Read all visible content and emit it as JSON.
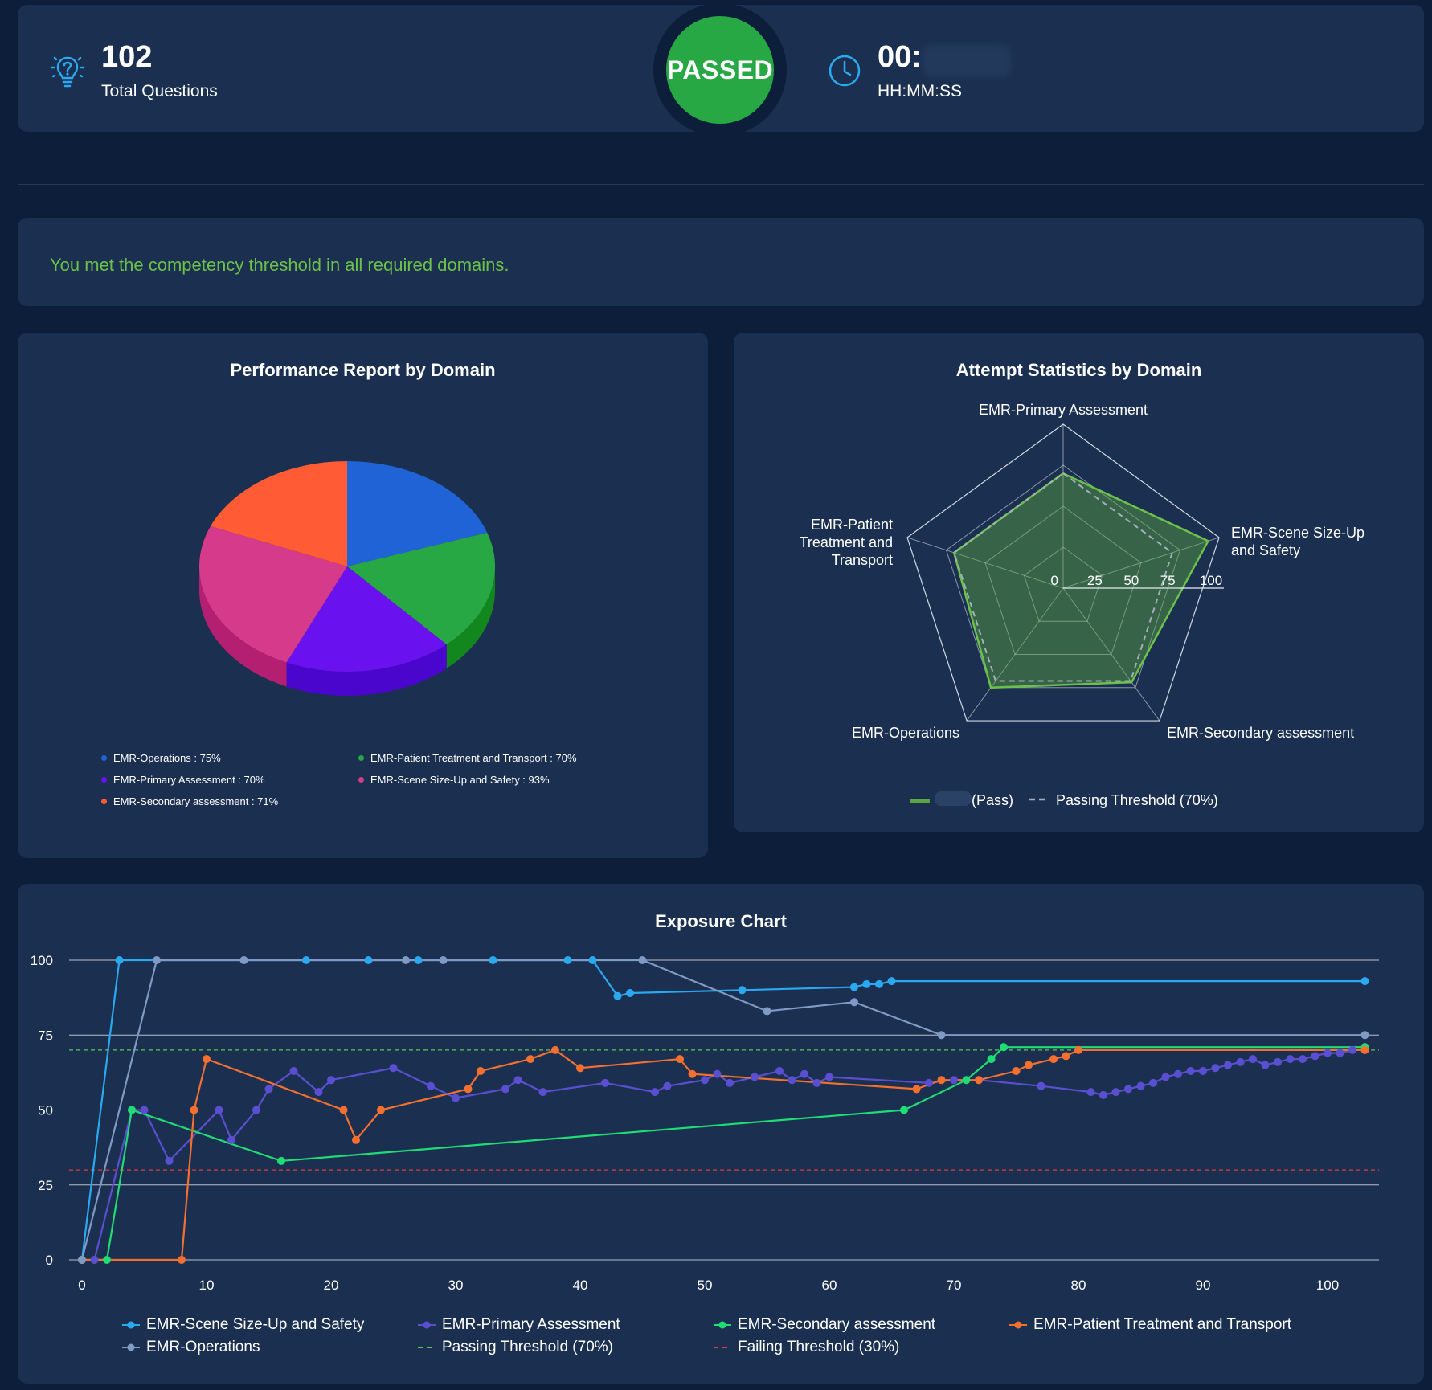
{
  "header": {
    "total_questions_value": "102",
    "total_questions_label": "Total Questions",
    "status": "PASSED",
    "time_value": "00:",
    "time_label": "HH:MM:SS",
    "icons": {
      "questions": "lightbulb-question-icon",
      "time": "clock-icon"
    }
  },
  "message": {
    "text": "You met the competency threshold in all required domains."
  },
  "colors": {
    "background": "#0c1e3a",
    "card": "#1b3050",
    "passed": "#27a844",
    "message": "#6cc14a",
    "scene": "#2aa9f0",
    "primary": "#5b4fd1",
    "secondary": "#1fdc74",
    "patient": "#f5702f",
    "operations": "#7f9ac4",
    "passing_threshold": "#63c44a",
    "failing_threshold": "#e23b3b"
  },
  "chart_data": [
    {
      "type": "pie",
      "title": "Performance Report by Domain",
      "slices": [
        {
          "label": "EMR-Operations",
          "value": 75,
          "color": "#1f63d6",
          "side": "#1646a0"
        },
        {
          "label": "EMR-Patient Treatment and Transport",
          "value": 70,
          "color": "#28a745",
          "side": "#12871d"
        },
        {
          "label": "EMR-Primary Assessment",
          "value": 70,
          "color": "#6a11f0",
          "side": "#4a06cc"
        },
        {
          "label": "EMR-Scene Size-Up and Safety",
          "value": 93,
          "color": "#d63a8a",
          "side": "#b51f71"
        },
        {
          "label": "EMR-Secondary assessment",
          "value": 71,
          "color": "#ff5c35",
          "side": "#d94420"
        }
      ],
      "legend": [
        "EMR-Operations : 75%",
        "EMR-Patient Treatment and Transport : 70%",
        "EMR-Primary Assessment : 70%",
        "EMR-Scene Size-Up and Safety : 93%",
        "EMR-Secondary assessment : 71%"
      ],
      "legend_placement": "bottom"
    },
    {
      "type": "radar",
      "title": "Attempt Statistics by Domain",
      "axes": [
        "EMR-Primary Assessment",
        "EMR-Scene Size-Up and Safety",
        "EMR-Secondary assessment",
        "EMR-Operations",
        "EMR-Patient Treatment and Transport"
      ],
      "axis_labels": [
        [
          "EMR-Primary Assessment"
        ],
        [
          "EMR-Scene Size-Up",
          "and Safety"
        ],
        [
          "EMR-Secondary assessment"
        ],
        [
          "EMR-Operations"
        ],
        [
          "EMR-Patient",
          "Treatment and",
          "Transport"
        ]
      ],
      "ticks": [
        0,
        25,
        50,
        75,
        100
      ],
      "range": [
        0,
        100
      ],
      "series": [
        {
          "name": "(Pass)",
          "values": [
            70,
            93,
            71,
            75,
            70
          ]
        },
        {
          "name": "Passing Threshold (70%)",
          "values": [
            70,
            70,
            70,
            70,
            70
          ]
        }
      ],
      "legend_placement": "bottom"
    },
    {
      "type": "line",
      "title": "Exposure Chart",
      "xlim": [
        0,
        103
      ],
      "ylim": [
        0,
        100
      ],
      "x_ticks": [
        0,
        10,
        20,
        30,
        40,
        50,
        60,
        70,
        80,
        90,
        100
      ],
      "y_ticks": [
        0,
        25,
        50,
        75,
        100
      ],
      "thresholds": [
        {
          "name": "Passing Threshold (70%)",
          "value": 70
        },
        {
          "name": "Failing Threshold (30%)",
          "value": 30
        }
      ],
      "series": [
        {
          "name": "EMR-Scene Size-Up and Safety",
          "points": [
            [
              0,
              0
            ],
            [
              3,
              100
            ],
            [
              18,
              100
            ],
            [
              23,
              100
            ],
            [
              27,
              100
            ],
            [
              33,
              100
            ],
            [
              39,
              100
            ],
            [
              41,
              100
            ],
            [
              43,
              88
            ],
            [
              44,
              89
            ],
            [
              53,
              90
            ],
            [
              62,
              91
            ],
            [
              63,
              92
            ],
            [
              64,
              92
            ],
            [
              65,
              93
            ],
            [
              103,
              93
            ]
          ]
        },
        {
          "name": "EMR-Primary Assessment",
          "points": [
            [
              0,
              0
            ],
            [
              1,
              0
            ],
            [
              4,
              50
            ],
            [
              5,
              50
            ],
            [
              7,
              33
            ],
            [
              11,
              50
            ],
            [
              12,
              40
            ],
            [
              14,
              50
            ],
            [
              15,
              57
            ],
            [
              17,
              63
            ],
            [
              19,
              56
            ],
            [
              20,
              60
            ],
            [
              25,
              64
            ],
            [
              28,
              58
            ],
            [
              30,
              54
            ],
            [
              34,
              57
            ],
            [
              35,
              60
            ],
            [
              37,
              56
            ],
            [
              42,
              59
            ],
            [
              46,
              56
            ],
            [
              47,
              58
            ],
            [
              50,
              60
            ],
            [
              51,
              62
            ],
            [
              52,
              59
            ],
            [
              54,
              61
            ],
            [
              56,
              63
            ],
            [
              57,
              60
            ],
            [
              58,
              62
            ],
            [
              59,
              59
            ],
            [
              60,
              61
            ],
            [
              68,
              59
            ],
            [
              70,
              60
            ],
            [
              72,
              60
            ],
            [
              77,
              58
            ],
            [
              81,
              56
            ],
            [
              82,
              55
            ],
            [
              83,
              56
            ],
            [
              84,
              57
            ],
            [
              85,
              58
            ],
            [
              86,
              59
            ],
            [
              87,
              61
            ],
            [
              88,
              62
            ],
            [
              89,
              63
            ],
            [
              90,
              63
            ],
            [
              91,
              64
            ],
            [
              92,
              65
            ],
            [
              93,
              66
            ],
            [
              94,
              67
            ],
            [
              95,
              65
            ],
            [
              96,
              66
            ],
            [
              97,
              67
            ],
            [
              98,
              67
            ],
            [
              99,
              68
            ],
            [
              100,
              69
            ],
            [
              101,
              69
            ],
            [
              102,
              70
            ],
            [
              103,
              70
            ]
          ]
        },
        {
          "name": "EMR-Secondary assessment",
          "points": [
            [
              0,
              0
            ],
            [
              2,
              0
            ],
            [
              4,
              50
            ],
            [
              16,
              33
            ],
            [
              66,
              50
            ],
            [
              71,
              60
            ],
            [
              73,
              67
            ],
            [
              74,
              71
            ],
            [
              103,
              71
            ]
          ]
        },
        {
          "name": "EMR-Patient Treatment and Transport",
          "points": [
            [
              0,
              0
            ],
            [
              8,
              0
            ],
            [
              9,
              50
            ],
            [
              10,
              67
            ],
            [
              21,
              50
            ],
            [
              22,
              40
            ],
            [
              24,
              50
            ],
            [
              31,
              57
            ],
            [
              32,
              63
            ],
            [
              36,
              67
            ],
            [
              38,
              70
            ],
            [
              40,
              64
            ],
            [
              48,
              67
            ],
            [
              49,
              62
            ],
            [
              67,
              57
            ],
            [
              69,
              60
            ],
            [
              72,
              60
            ],
            [
              75,
              63
            ],
            [
              76,
              65
            ],
            [
              78,
              67
            ],
            [
              79,
              68
            ],
            [
              80,
              70
            ],
            [
              103,
              70
            ]
          ]
        },
        {
          "name": "EMR-Operations",
          "points": [
            [
              0,
              0
            ],
            [
              6,
              100
            ],
            [
              13,
              100
            ],
            [
              26,
              100
            ],
            [
              29,
              100
            ],
            [
              45,
              100
            ],
            [
              55,
              83
            ],
            [
              62,
              86
            ],
            [
              69,
              75
            ],
            [
              103,
              75
            ]
          ]
        }
      ],
      "legend_placement": "bottom"
    }
  ]
}
